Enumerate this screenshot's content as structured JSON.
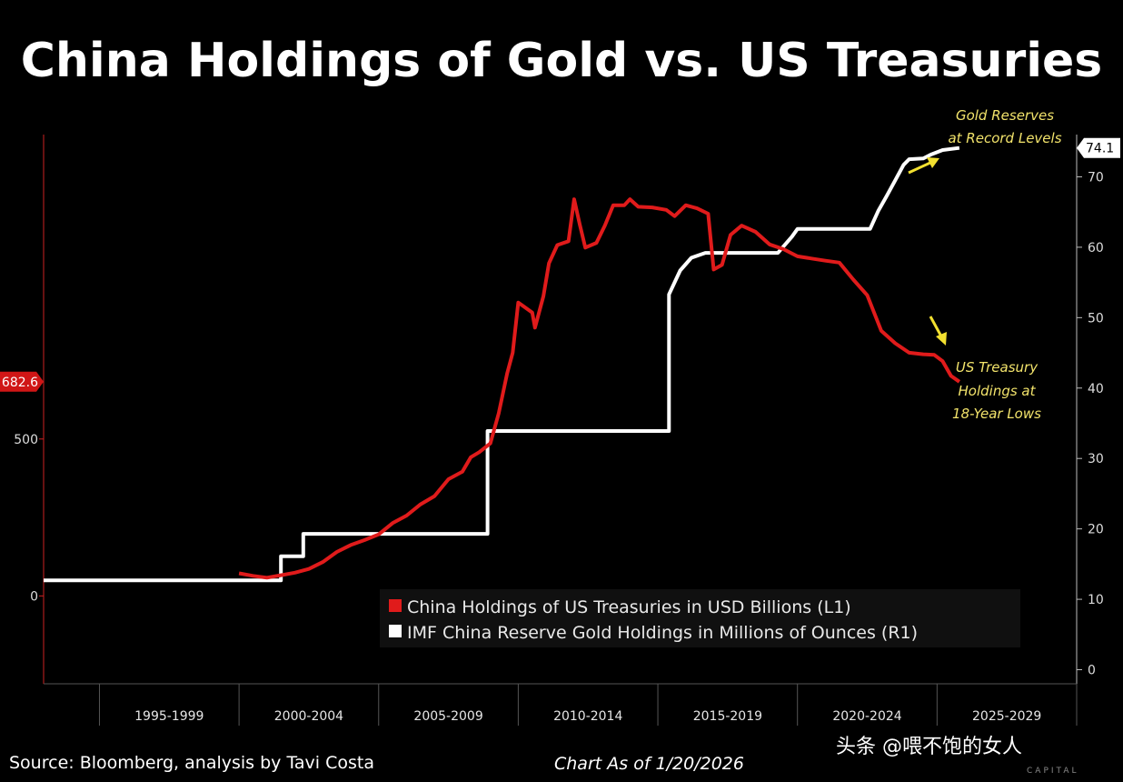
{
  "chart_data": {
    "type": "line",
    "title": "China Holdings of Gold vs. US Treasuries",
    "x_categories": [
      "1995-1999",
      "2000-2004",
      "2005-2009",
      "2010-2014",
      "2015-2019",
      "2020-2024",
      "2025-2029"
    ],
    "xlim": [
      1993,
      2030
    ],
    "left_axis": {
      "ticks": [
        0,
        500
      ],
      "ylim": [
        -280,
        1470
      ],
      "last_value_label": "682.6",
      "last_value": 682.6
    },
    "right_axis": {
      "ticks": [
        0,
        10,
        20,
        30,
        40,
        50,
        60,
        70
      ],
      "ylim": [
        -2,
        76
      ],
      "last_value_label": "74.1",
      "last_value": 74.1
    },
    "series": [
      {
        "name": "China Holdings of US Treasuries in USD Billions (L1)",
        "axis": "left",
        "color": "#e01b1b",
        "points": [
          [
            2000.0,
            72
          ],
          [
            2000.5,
            64
          ],
          [
            2001.0,
            58
          ],
          [
            2001.5,
            66
          ],
          [
            2002.0,
            74
          ],
          [
            2002.5,
            86
          ],
          [
            2003.0,
            108
          ],
          [
            2003.5,
            140
          ],
          [
            2004.0,
            162
          ],
          [
            2004.5,
            178
          ],
          [
            2005.0,
            196
          ],
          [
            2005.5,
            232
          ],
          [
            2006.0,
            256
          ],
          [
            2006.5,
            292
          ],
          [
            2007.0,
            318
          ],
          [
            2007.5,
            372
          ],
          [
            2008.0,
            396
          ],
          [
            2008.3,
            442
          ],
          [
            2008.6,
            458
          ],
          [
            2009.0,
            486
          ],
          [
            2009.3,
            582
          ],
          [
            2009.6,
            708
          ],
          [
            2009.8,
            775
          ],
          [
            2010.0,
            935
          ],
          [
            2010.2,
            922
          ],
          [
            2010.5,
            903
          ],
          [
            2010.6,
            855
          ],
          [
            2010.9,
            955
          ],
          [
            2011.1,
            1060
          ],
          [
            2011.4,
            1118
          ],
          [
            2011.8,
            1130
          ],
          [
            2012.0,
            1264
          ],
          [
            2012.2,
            1185
          ],
          [
            2012.4,
            1110
          ],
          [
            2012.8,
            1125
          ],
          [
            2013.1,
            1180
          ],
          [
            2013.4,
            1245
          ],
          [
            2013.8,
            1245
          ],
          [
            2014.0,
            1264
          ],
          [
            2014.3,
            1240
          ],
          [
            2014.8,
            1238
          ],
          [
            2015.3,
            1230
          ],
          [
            2015.6,
            1210
          ],
          [
            2016.0,
            1245
          ],
          [
            2016.4,
            1235
          ],
          [
            2016.8,
            1218
          ],
          [
            2017.0,
            1040
          ],
          [
            2017.3,
            1055
          ],
          [
            2017.6,
            1150
          ],
          [
            2018.0,
            1180
          ],
          [
            2018.5,
            1160
          ],
          [
            2019.0,
            1120
          ],
          [
            2019.5,
            1105
          ],
          [
            2020.0,
            1082
          ],
          [
            2020.5,
            1075
          ],
          [
            2021.0,
            1068
          ],
          [
            2021.5,
            1062
          ],
          [
            2022.0,
            1008
          ],
          [
            2022.5,
            958
          ],
          [
            2023.0,
            845
          ],
          [
            2023.5,
            805
          ],
          [
            2024.0,
            775
          ],
          [
            2024.5,
            770
          ],
          [
            2024.9,
            768
          ],
          [
            2025.2,
            748
          ],
          [
            2025.5,
            701
          ],
          [
            2025.8,
            682.6
          ]
        ]
      },
      {
        "name": "IMF China Reserve Gold Holdings in Millions of Ounces (R1)",
        "axis": "right",
        "color": "#ffffff",
        "points": [
          [
            1993.0,
            12.7
          ],
          [
            2001.5,
            12.7
          ],
          [
            2001.5,
            16.1
          ],
          [
            2002.3,
            16.1
          ],
          [
            2002.3,
            19.3
          ],
          [
            2008.9,
            19.3
          ],
          [
            2008.9,
            33.9
          ],
          [
            2015.4,
            33.9
          ],
          [
            2015.4,
            53.3
          ],
          [
            2015.8,
            56.7
          ],
          [
            2016.2,
            58.5
          ],
          [
            2016.7,
            59.2
          ],
          [
            2019.3,
            59.2
          ],
          [
            2019.8,
            61.5
          ],
          [
            2020.0,
            62.6
          ],
          [
            2022.6,
            62.6
          ],
          [
            2022.9,
            65.2
          ],
          [
            2023.2,
            67.3
          ],
          [
            2023.5,
            69.5
          ],
          [
            2023.8,
            71.7
          ],
          [
            2024.0,
            72.5
          ],
          [
            2024.5,
            72.6
          ],
          [
            2024.8,
            73.2
          ],
          [
            2025.2,
            73.8
          ],
          [
            2025.8,
            74.1
          ]
        ]
      }
    ],
    "annotations": {
      "gold": [
        "Gold Reserves",
        "at Record Levels"
      ],
      "treasury": [
        "US Treasury",
        "Holdings at",
        "18-Year Lows"
      ]
    }
  },
  "footer": {
    "source": "Source: Bloomberg, analysis by Tavi Costa",
    "as_of": "Chart As of 1/20/2026"
  },
  "watermark": {
    "text": "头条 @喂不饱的女人",
    "logo_text": "CAPITAL"
  }
}
